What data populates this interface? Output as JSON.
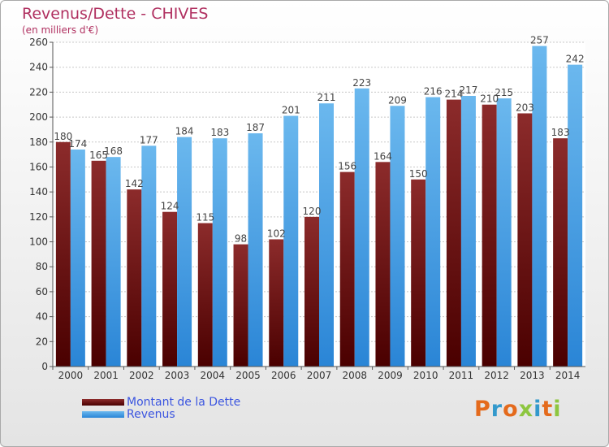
{
  "header": {
    "title": "Revenus/Dette - CHIVES",
    "subtitle": "(en milliers d'€)"
  },
  "logo": {
    "text": "Proxiti",
    "colors": [
      "#e46a1c",
      "#3399cc",
      "#e46a1c",
      "#8dc63f",
      "#3399cc",
      "#e46a1c",
      "#8dc63f"
    ]
  },
  "colors": {
    "dette_top": "#8c2b2b",
    "dette_bottom": "#4a0000",
    "revenus_top": "#6bb8ee",
    "revenus_bottom": "#2a85d6",
    "title": "#b03060"
  },
  "chart_data": {
    "type": "bar",
    "categories": [
      "2000",
      "2001",
      "2002",
      "2003",
      "2004",
      "2005",
      "2006",
      "2007",
      "2008",
      "2009",
      "2010",
      "2011",
      "2012",
      "2013",
      "2014"
    ],
    "series": [
      {
        "name": "Montant de la Dette",
        "values": [
          180,
          165,
          142,
          124,
          115,
          98,
          102,
          120,
          156,
          164,
          150,
          214,
          210,
          203,
          183
        ]
      },
      {
        "name": "Revenus",
        "values": [
          174,
          168,
          177,
          184,
          183,
          187,
          201,
          211,
          223,
          209,
          216,
          217,
          215,
          257,
          242
        ]
      }
    ],
    "ylim": [
      0,
      260
    ],
    "yticks": [
      0,
      20,
      40,
      60,
      80,
      100,
      120,
      140,
      160,
      180,
      200,
      220,
      240,
      260
    ],
    "grid": true,
    "legend_position": "bottom-left"
  }
}
